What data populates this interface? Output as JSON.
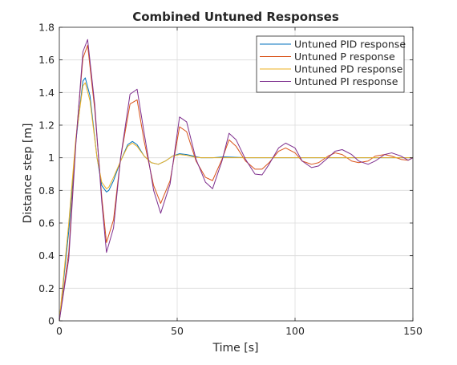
{
  "chart_data": {
    "type": "line",
    "title": "Combined Untuned Responses",
    "xlabel": "Time [s]",
    "ylabel": "Distance step [m]",
    "xlim": [
      0,
      150
    ],
    "ylim": [
      0,
      1.8
    ],
    "xticks": [
      0,
      50,
      100,
      150
    ],
    "yticks": [
      0,
      0.2,
      0.4,
      0.6,
      0.8,
      1,
      1.2,
      1.4,
      1.6,
      1.8
    ],
    "xtick_labels": [
      "0",
      "50",
      "100",
      "150"
    ],
    "ytick_labels": [
      "0",
      "0.2",
      "0.4",
      "0.6",
      "0.8",
      "1",
      "1.2",
      "1.4",
      "1.6",
      "1.8"
    ],
    "grid": true,
    "legend_position": "top-right",
    "series": [
      {
        "name": "Untuned PID response",
        "color": "#0072bd",
        "x": [
          0,
          4,
          7,
          10,
          11,
          13,
          16,
          18,
          20,
          21,
          23,
          26,
          29,
          31,
          33,
          36,
          39,
          42,
          45,
          48,
          51,
          54,
          57,
          60,
          65,
          70,
          80,
          90,
          100,
          110,
          120,
          130,
          140,
          150
        ],
        "y": [
          0,
          0.55,
          1.1,
          1.47,
          1.49,
          1.38,
          1.0,
          0.83,
          0.79,
          0.8,
          0.86,
          0.98,
          1.08,
          1.1,
          1.08,
          1.01,
          0.97,
          0.96,
          0.98,
          1.01,
          1.025,
          1.02,
          1.01,
          1.0,
          1.0,
          1.005,
          1.0,
          1.0,
          1.0,
          1.0,
          1.0,
          1.0,
          1.0,
          1.0
        ]
      },
      {
        "name": "Untuned P response",
        "color": "#d95319",
        "x": [
          0,
          4,
          7,
          10,
          12,
          15,
          18,
          20,
          23,
          26,
          30,
          33,
          36,
          40,
          43,
          47,
          51,
          54,
          58,
          62,
          65,
          69,
          72,
          75,
          79,
          83,
          86,
          89,
          93,
          96,
          100,
          103,
          107,
          110,
          114,
          117,
          120,
          124,
          127,
          131,
          134,
          138,
          141,
          145,
          148,
          150
        ],
        "y": [
          0,
          0.42,
          1.1,
          1.61,
          1.69,
          1.3,
          0.76,
          0.48,
          0.62,
          1.0,
          1.33,
          1.355,
          1.1,
          0.83,
          0.72,
          0.86,
          1.19,
          1.16,
          0.98,
          0.88,
          0.86,
          0.99,
          1.11,
          1.07,
          0.98,
          0.93,
          0.93,
          0.97,
          1.04,
          1.06,
          1.03,
          0.98,
          0.96,
          0.97,
          1.01,
          1.03,
          1.02,
          0.98,
          0.97,
          0.98,
          1.01,
          1.02,
          1.01,
          0.99,
          0.985,
          1.0
        ]
      },
      {
        "name": "Untuned PD response",
        "color": "#edb120",
        "x": [
          0,
          4,
          7,
          10,
          11,
          13,
          16,
          18,
          20,
          21,
          23,
          26,
          29,
          31,
          33,
          36,
          39,
          42,
          45,
          48,
          51,
          54,
          57,
          60,
          65,
          70,
          80,
          90,
          100,
          110,
          120,
          130,
          140,
          150
        ],
        "y": [
          0,
          0.6,
          1.12,
          1.44,
          1.46,
          1.35,
          1.0,
          0.85,
          0.81,
          0.82,
          0.88,
          0.98,
          1.07,
          1.09,
          1.07,
          1.01,
          0.97,
          0.96,
          0.98,
          1.01,
          1.02,
          1.015,
          1.005,
          1.0,
          1.0,
          1.0,
          1.0,
          1.0,
          1.0,
          1.0,
          1.0,
          1.0,
          1.0,
          1.0
        ]
      },
      {
        "name": "Untuned PI response",
        "color": "#7e2f8e",
        "x": [
          0,
          4,
          7,
          10,
          12,
          15,
          18,
          20,
          23,
          26,
          30,
          33,
          36,
          40,
          43,
          47,
          51,
          54,
          58,
          62,
          65,
          69,
          72,
          75,
          79,
          83,
          86,
          89,
          93,
          96,
          100,
          103,
          107,
          110,
          114,
          117,
          120,
          124,
          127,
          131,
          134,
          138,
          141,
          145,
          148,
          150
        ],
        "y": [
          0,
          0.38,
          1.08,
          1.65,
          1.725,
          1.33,
          0.73,
          0.42,
          0.57,
          1.0,
          1.39,
          1.42,
          1.15,
          0.8,
          0.66,
          0.84,
          1.25,
          1.22,
          0.99,
          0.85,
          0.81,
          0.98,
          1.15,
          1.11,
          0.99,
          0.9,
          0.895,
          0.96,
          1.06,
          1.09,
          1.06,
          0.98,
          0.94,
          0.95,
          1.0,
          1.04,
          1.05,
          1.02,
          0.98,
          0.96,
          0.98,
          1.02,
          1.03,
          1.01,
          0.985,
          1.0
        ]
      }
    ]
  }
}
